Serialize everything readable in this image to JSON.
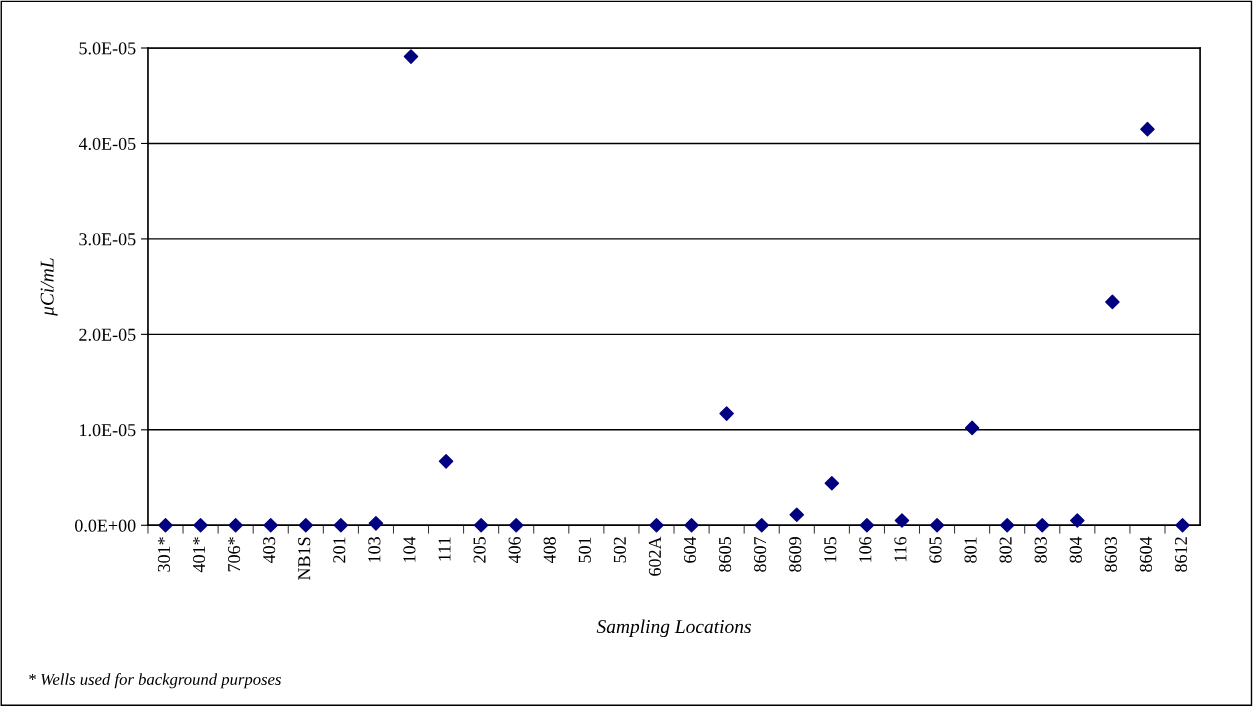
{
  "chart_data": {
    "type": "scatter",
    "xlabel": "Sampling Locations",
    "ylabel": "μCi/mL",
    "categories": [
      "301*",
      "401*",
      "706*",
      "403",
      "NB1S",
      "201",
      "103",
      "104",
      "111",
      "205",
      "406",
      "408",
      "501",
      "502",
      "602A",
      "604",
      "8605",
      "8607",
      "8609",
      "105",
      "106",
      "116",
      "605",
      "801",
      "802",
      "803",
      "804",
      "8603",
      "8604",
      "8612"
    ],
    "series": [
      {
        "color": "#000080",
        "values": [
          0,
          0,
          0,
          0,
          0,
          0,
          2e-07,
          4.91e-05,
          6.7e-06,
          0,
          0,
          null,
          null,
          null,
          0,
          0,
          1.17e-05,
          0,
          1.1e-06,
          4.4e-06,
          0,
          5e-07,
          0,
          1.02e-05,
          0,
          0,
          5e-07,
          2.34e-05,
          4.15e-05,
          0
        ]
      }
    ],
    "ylim": [
      0,
      5e-05
    ],
    "yticks": [
      {
        "value": 0,
        "label": "0.0E+00"
      },
      {
        "value": 1e-05,
        "label": "1.0E-05"
      },
      {
        "value": 2e-05,
        "label": "2.0E-05"
      },
      {
        "value": 3e-05,
        "label": "3.0E-05"
      },
      {
        "value": 4e-05,
        "label": "4.0E-05"
      },
      {
        "value": 5e-05,
        "label": "5.0E-05"
      }
    ],
    "grid": "y",
    "marker": "diamond",
    "legend": false,
    "annotations": [
      "* Wells used for background purposes"
    ]
  }
}
